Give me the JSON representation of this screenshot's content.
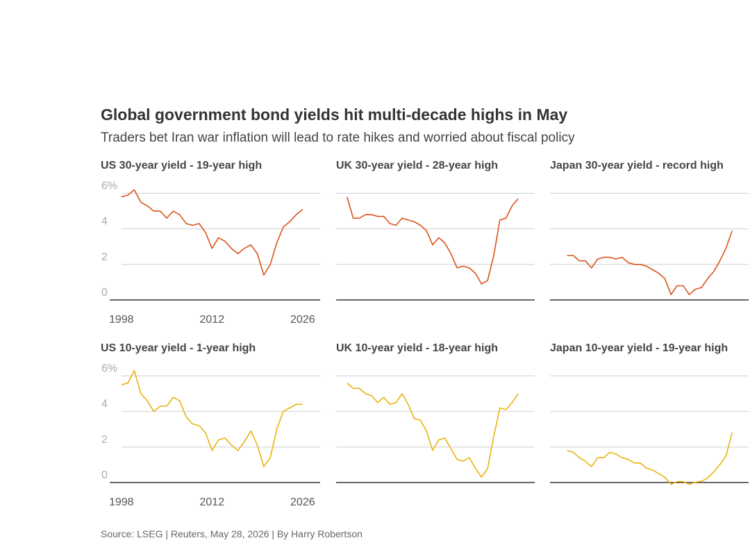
{
  "title": "Global government bond yields hit multi-decade highs in May",
  "subtitle": "Traders bet Iran war inflation will lead to rate hikes and worried about fiscal policy",
  "source": "Source: LSEG | Reuters, May 28, 2026 | By Harry Robertson",
  "chart_data": [
    {
      "type": "line",
      "title": "US 30-year yield - 19-year high",
      "color": "#d9541a",
      "tick_labels": true,
      "x": [
        1998,
        1999,
        2000,
        2001,
        2002,
        2003,
        2004,
        2005,
        2006,
        2007,
        2008,
        2009,
        2010,
        2011,
        2012,
        2013,
        2014,
        2015,
        2016,
        2017,
        2018,
        2019,
        2020,
        2021,
        2022,
        2023,
        2024,
        2025,
        2026
      ],
      "values": [
        5.8,
        5.9,
        6.2,
        5.5,
        5.3,
        5.0,
        5.0,
        4.6,
        5.0,
        4.8,
        4.3,
        4.2,
        4.3,
        3.8,
        2.9,
        3.5,
        3.3,
        2.9,
        2.6,
        2.9,
        3.1,
        2.6,
        1.4,
        2.0,
        3.2,
        4.1,
        4.4,
        4.8,
        5.1
      ],
      "xlim": [
        1996.2,
        2028.7
      ],
      "xticks": [
        1998,
        2012,
        2026
      ],
      "ylim": [
        0,
        6.8
      ],
      "yticks": [
        0,
        2,
        4,
        {
          "value": 6,
          "label": "6%"
        }
      ]
    },
    {
      "type": "line",
      "title": "UK 30-year yield - 28-year high",
      "color": "#d9541a",
      "tick_labels": false,
      "x": [
        1998,
        1999,
        2000,
        2001,
        2002,
        2003,
        2004,
        2005,
        2006,
        2007,
        2008,
        2009,
        2010,
        2011,
        2012,
        2013,
        2014,
        2015,
        2016,
        2017,
        2018,
        2019,
        2020,
        2021,
        2022,
        2023,
        2024,
        2025,
        2026
      ],
      "values": [
        5.8,
        4.6,
        4.6,
        4.8,
        4.8,
        4.7,
        4.7,
        4.3,
        4.2,
        4.6,
        4.5,
        4.4,
        4.2,
        3.9,
        3.1,
        3.5,
        3.2,
        2.6,
        1.8,
        1.9,
        1.8,
        1.5,
        0.9,
        1.1,
        2.5,
        4.5,
        4.6,
        5.3,
        5.7
      ],
      "xlim": [
        1996.2,
        2028.7
      ],
      "ylim": [
        0,
        6.8
      ],
      "yticks": [
        0,
        2,
        4,
        6
      ]
    },
    {
      "type": "line",
      "title": "Japan 30-year yield - record high",
      "color": "#d9541a",
      "tick_labels": false,
      "x": [
        1999,
        2000,
        2001,
        2002,
        2003,
        2004,
        2005,
        2006,
        2007,
        2008,
        2009,
        2010,
        2011,
        2012,
        2013,
        2014,
        2015,
        2016,
        2017,
        2018,
        2019,
        2020,
        2021,
        2022,
        2023,
        2024,
        2025,
        2026
      ],
      "values": [
        2.5,
        2.5,
        2.2,
        2.2,
        1.8,
        2.3,
        2.4,
        2.4,
        2.3,
        2.4,
        2.1,
        2.0,
        2.0,
        1.9,
        1.7,
        1.5,
        1.2,
        0.3,
        0.8,
        0.8,
        0.3,
        0.6,
        0.7,
        1.2,
        1.6,
        2.2,
        2.9,
        3.9
      ],
      "xlim": [
        1996.2,
        2028.7
      ],
      "ylim": [
        0,
        6.8
      ],
      "yticks": [
        0,
        2,
        4,
        6
      ]
    },
    {
      "type": "line",
      "title": "US 10-year yield - 1-year high",
      "color": "#e8b40c",
      "tick_labels": true,
      "x": [
        1998,
        1999,
        2000,
        2001,
        2002,
        2003,
        2004,
        2005,
        2006,
        2007,
        2008,
        2009,
        2010,
        2011,
        2012,
        2013,
        2014,
        2015,
        2016,
        2017,
        2018,
        2019,
        2020,
        2021,
        2022,
        2023,
        2024,
        2025,
        2026
      ],
      "values": [
        5.5,
        5.6,
        6.3,
        5.0,
        4.6,
        4.0,
        4.3,
        4.3,
        4.8,
        4.6,
        3.7,
        3.3,
        3.2,
        2.8,
        1.8,
        2.4,
        2.5,
        2.1,
        1.8,
        2.3,
        2.9,
        2.1,
        0.9,
        1.4,
        3.0,
        4.0,
        4.2,
        4.4,
        4.4
      ],
      "xlim": [
        1996.2,
        2028.7
      ],
      "xticks": [
        1998,
        2012,
        2026
      ],
      "ylim": [
        0,
        6.8
      ],
      "yticks": [
        0,
        2,
        4,
        {
          "value": 6,
          "label": "6%"
        }
      ]
    },
    {
      "type": "line",
      "title": "UK 10-year yield - 18-year high",
      "color": "#e8b40c",
      "tick_labels": false,
      "x": [
        1998,
        1999,
        2000,
        2001,
        2002,
        2003,
        2004,
        2005,
        2006,
        2007,
        2008,
        2009,
        2010,
        2011,
        2012,
        2013,
        2014,
        2015,
        2016,
        2017,
        2018,
        2019,
        2020,
        2021,
        2022,
        2023,
        2024,
        2025,
        2026
      ],
      "values": [
        5.6,
        5.3,
        5.3,
        5.0,
        4.9,
        4.5,
        4.8,
        4.4,
        4.5,
        5.0,
        4.4,
        3.6,
        3.5,
        2.9,
        1.8,
        2.4,
        2.5,
        1.9,
        1.3,
        1.2,
        1.4,
        0.8,
        0.3,
        0.8,
        2.6,
        4.2,
        4.1,
        4.5,
        5.0
      ],
      "xlim": [
        1996.2,
        2028.7
      ],
      "ylim": [
        0,
        6.8
      ],
      "yticks": [
        0,
        2,
        4,
        6
      ]
    },
    {
      "type": "line",
      "title": "Japan 10-year yield - 19-year high",
      "color": "#e8b40c",
      "tick_labels": false,
      "x": [
        1999,
        2000,
        2001,
        2002,
        2003,
        2004,
        2005,
        2006,
        2007,
        2008,
        2009,
        2010,
        2011,
        2012,
        2013,
        2014,
        2015,
        2016,
        2017,
        2018,
        2019,
        2020,
        2021,
        2022,
        2023,
        2024,
        2025,
        2026
      ],
      "values": [
        1.8,
        1.7,
        1.4,
        1.2,
        0.9,
        1.4,
        1.4,
        1.7,
        1.6,
        1.4,
        1.3,
        1.1,
        1.1,
        0.8,
        0.7,
        0.5,
        0.3,
        -0.1,
        0.05,
        0.05,
        -0.1,
        0.02,
        0.07,
        0.25,
        0.6,
        1.0,
        1.5,
        2.8
      ],
      "xlim": [
        1996.2,
        2028.7
      ],
      "ylim": [
        0,
        6.8
      ],
      "yticks": [
        0,
        2,
        4,
        6
      ]
    }
  ]
}
